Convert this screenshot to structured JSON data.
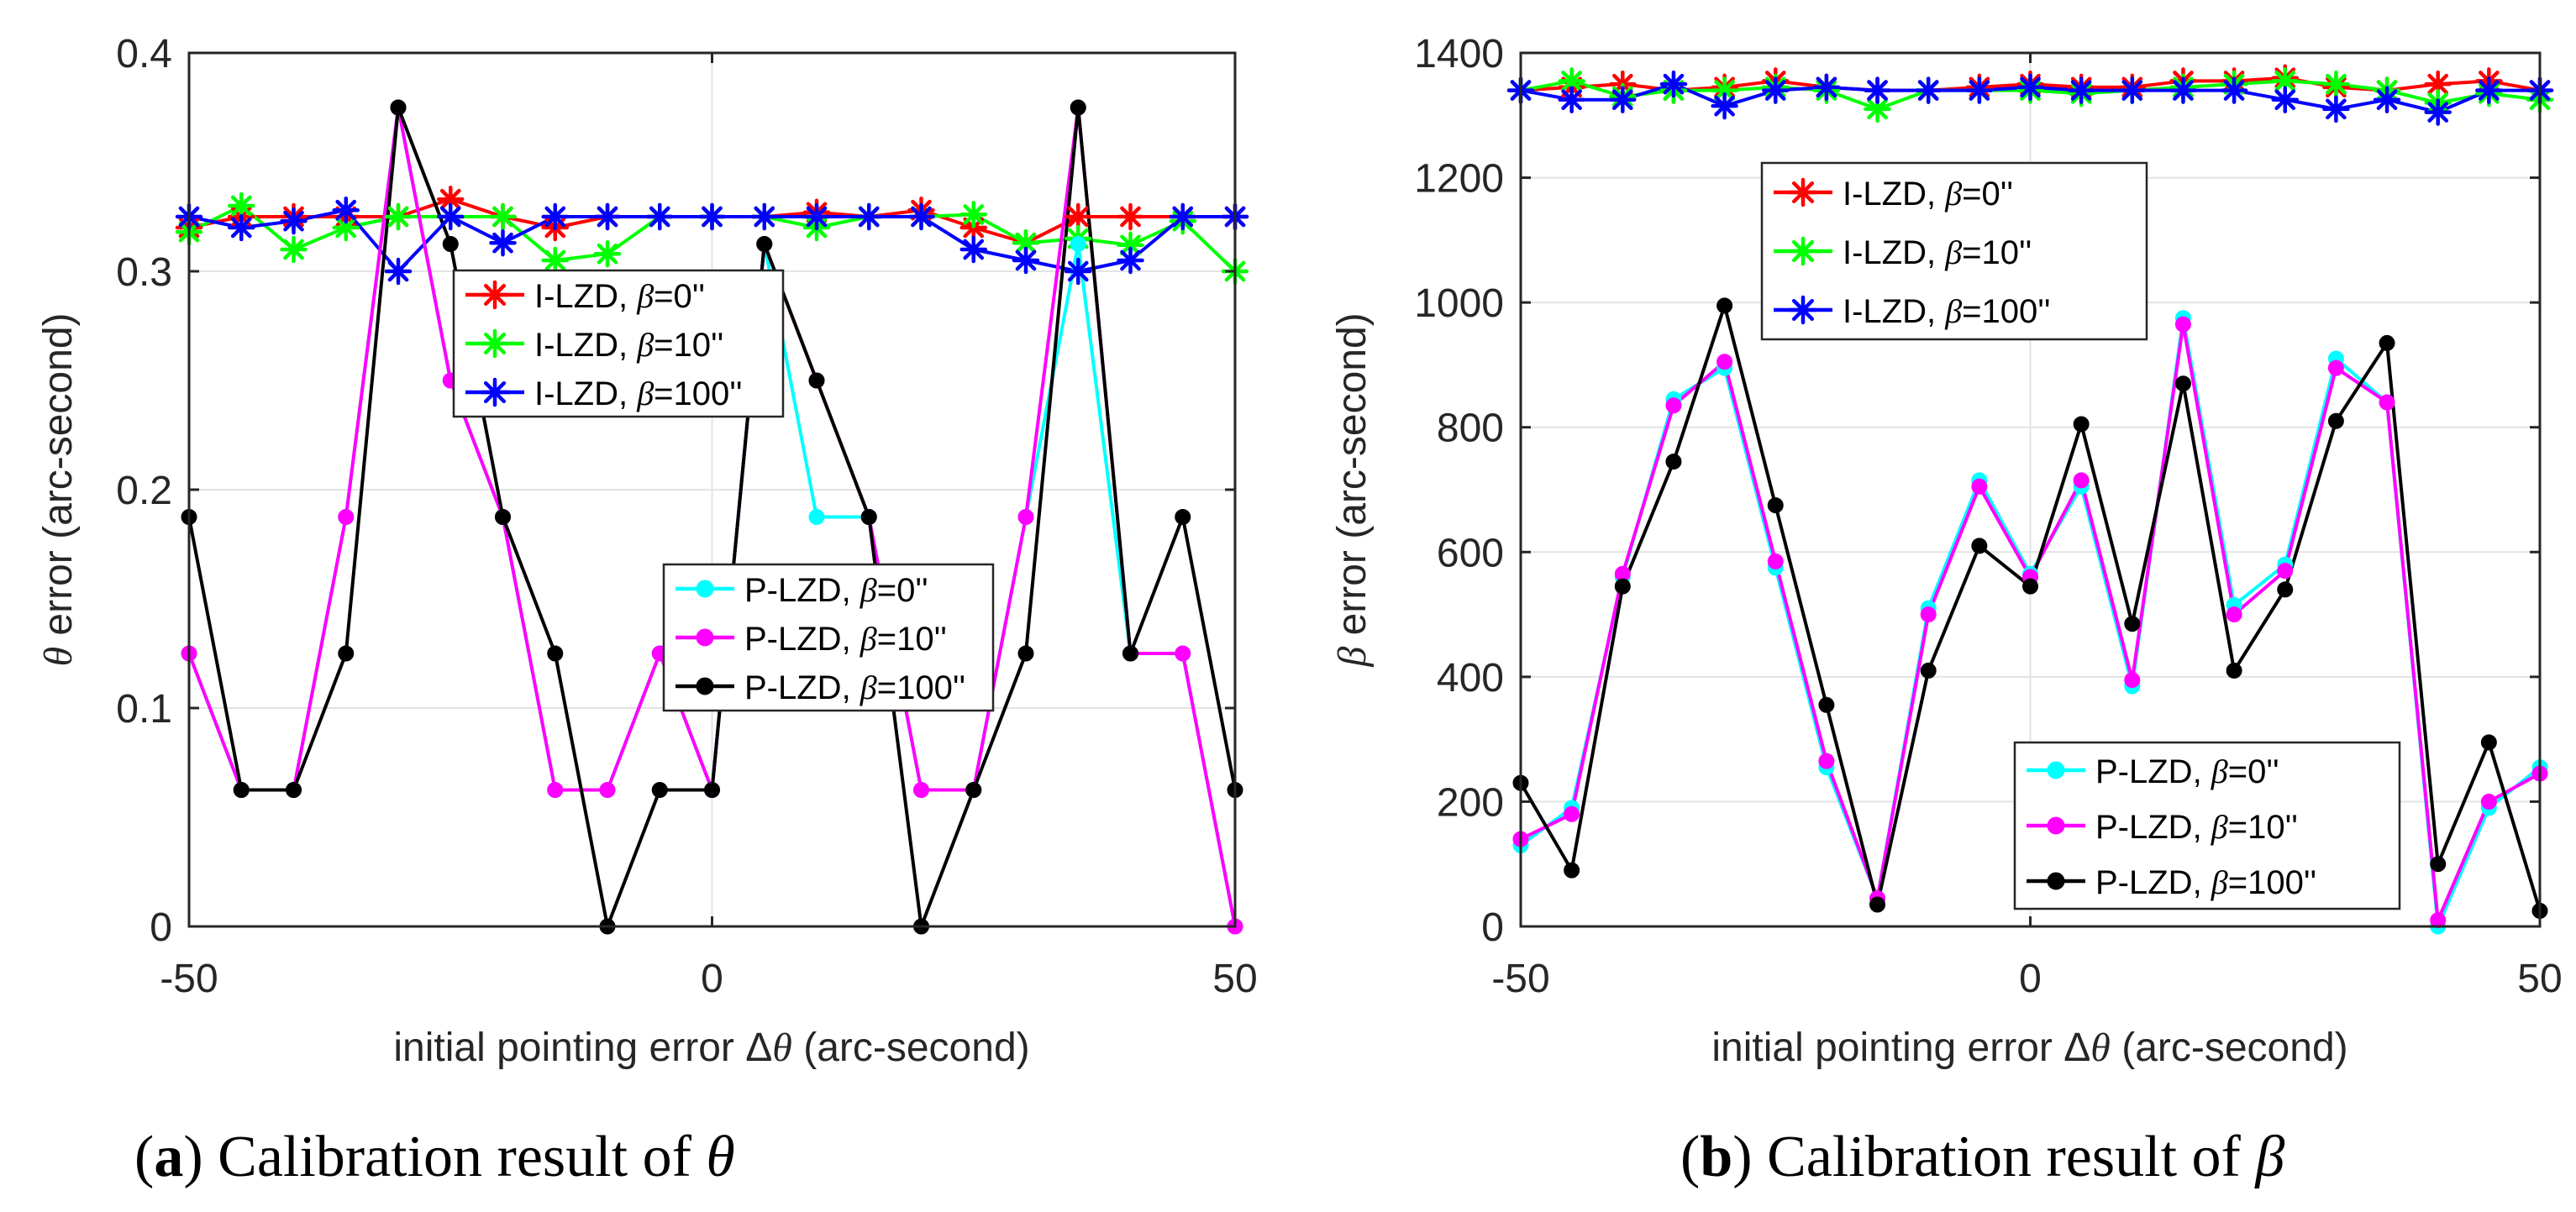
{
  "chart_data": [
    {
      "type": "line",
      "panel_label": "a",
      "caption": "Calibration result of θ",
      "title": "",
      "xlabel": "initial pointing error Δθ (arc-second)",
      "ylabel": "θ error (arc-second)",
      "xlim": [
        -50,
        50
      ],
      "ylim": [
        0,
        0.4
      ],
      "xticks": [
        -50,
        0,
        50
      ],
      "yticks": [
        0,
        0.1,
        0.2,
        0.3,
        0.4
      ],
      "xtick_labels": [
        "-50",
        "0",
        "50"
      ],
      "ytick_labels": [
        "0",
        "0.1",
        "0.2",
        "0.3",
        "0.4"
      ],
      "grid": true,
      "x": [
        -50,
        -45,
        -40,
        -35,
        -30,
        -25,
        -20,
        -15,
        -10,
        -5,
        0,
        5,
        10,
        15,
        20,
        25,
        30,
        35,
        40,
        45,
        50
      ],
      "legends": [
        {
          "placement": "upper-center",
          "entries": [
            {
              "method": "I-LZD",
              "beta": "β=0''",
              "color": "#ff0000",
              "marker": "star"
            },
            {
              "method": "I-LZD",
              "beta": "β=10''",
              "color": "#00ff00",
              "marker": "star"
            },
            {
              "method": "I-LZD",
              "beta": "β=100''",
              "color": "#0000ff",
              "marker": "star"
            }
          ]
        },
        {
          "placement": "center-right",
          "entries": [
            {
              "method": "P-LZD",
              "beta": "β=0''",
              "color": "#00ffff",
              "marker": "dot"
            },
            {
              "method": "P-LZD",
              "beta": "β=10''",
              "color": "#ff00ff",
              "marker": "dot"
            },
            {
              "method": "P-LZD",
              "beta": "β=100''",
              "color": "#000000",
              "marker": "dot"
            }
          ]
        }
      ],
      "series": [
        {
          "name": "I-LZD, β=0''",
          "color": "#ff0000",
          "marker": "star",
          "values": [
            0.32,
            0.325,
            0.325,
            0.325,
            0.325,
            0.333,
            0.325,
            0.32,
            0.325,
            0.325,
            0.325,
            0.325,
            0.327,
            0.325,
            0.328,
            0.32,
            0.313,
            0.325,
            0.325,
            0.325,
            0.325
          ]
        },
        {
          "name": "I-LZD, β=10''",
          "color": "#00ff00",
          "marker": "star",
          "values": [
            0.318,
            0.33,
            0.31,
            0.32,
            0.325,
            0.325,
            0.325,
            0.305,
            0.308,
            0.325,
            0.325,
            0.325,
            0.32,
            0.325,
            0.325,
            0.326,
            0.313,
            0.315,
            0.312,
            0.323,
            0.3
          ]
        },
        {
          "name": "I-LZD, β=100''",
          "color": "#0000ff",
          "marker": "star",
          "values": [
            0.325,
            0.32,
            0.323,
            0.328,
            0.3,
            0.325,
            0.313,
            0.325,
            0.325,
            0.325,
            0.325,
            0.325,
            0.325,
            0.325,
            0.325,
            0.31,
            0.305,
            0.3,
            0.305,
            0.325,
            0.325
          ]
        },
        {
          "name": "P-LZD, β=0''",
          "color": "#00ffff",
          "marker": "dot",
          "values": [
            0.125,
            0.0625,
            0.0625,
            0.1875,
            0.375,
            0.25,
            0.1875,
            0.0625,
            0.0625,
            0.125,
            0.0625,
            0.3125,
            0.1875,
            0.1875,
            0.0625,
            0.0625,
            0.1875,
            0.3125,
            0.125,
            0.125,
            0.0
          ]
        },
        {
          "name": "P-LZD, β=10''",
          "color": "#ff00ff",
          "marker": "dot",
          "values": [
            0.125,
            0.0625,
            0.0625,
            0.1875,
            0.375,
            0.25,
            0.1875,
            0.0625,
            0.0625,
            0.125,
            0.0625,
            0.3125,
            0.25,
            0.1875,
            0.0625,
            0.0625,
            0.1875,
            0.375,
            0.125,
            0.125,
            0.0
          ]
        },
        {
          "name": "P-LZD, β=100''",
          "color": "#000000",
          "marker": "dot",
          "values": [
            0.1875,
            0.0625,
            0.0625,
            0.125,
            0.375,
            0.3125,
            0.1875,
            0.125,
            0.0,
            0.0625,
            0.0625,
            0.3125,
            0.25,
            0.1875,
            0.0,
            0.0625,
            0.125,
            0.375,
            0.125,
            0.1875,
            0.0625
          ]
        }
      ]
    },
    {
      "type": "line",
      "panel_label": "b",
      "caption": "Calibration result of β",
      "title": "",
      "xlabel": "initial pointing error Δθ (arc-second)",
      "ylabel": "β error (arc-second)",
      "xlim": [
        -50,
        50
      ],
      "ylim": [
        0,
        1400
      ],
      "xticks": [
        -50,
        0,
        50
      ],
      "yticks": [
        0,
        200,
        400,
        600,
        800,
        1000,
        1200,
        1400
      ],
      "xtick_labels": [
        "-50",
        "0",
        "50"
      ],
      "ytick_labels": [
        "0",
        "200",
        "400",
        "600",
        "800",
        "1000",
        "1200",
        "1400"
      ],
      "grid": true,
      "x": [
        -50,
        -45,
        -40,
        -35,
        -30,
        -25,
        -20,
        -15,
        -10,
        -5,
        0,
        5,
        10,
        15,
        20,
        25,
        30,
        35,
        40,
        45,
        50
      ],
      "legends": [
        {
          "placement": "upper-center",
          "entries": [
            {
              "method": "I-LZD",
              "beta": "β=0''",
              "color": "#ff0000",
              "marker": "star"
            },
            {
              "method": "I-LZD",
              "beta": "β=10''",
              "color": "#00ff00",
              "marker": "star"
            },
            {
              "method": "I-LZD",
              "beta": "β=100''",
              "color": "#0000ff",
              "marker": "star"
            }
          ]
        },
        {
          "placement": "lower-right",
          "entries": [
            {
              "method": "P-LZD",
              "beta": "β=0''",
              "color": "#00ffff",
              "marker": "dot"
            },
            {
              "method": "P-LZD",
              "beta": "β=10''",
              "color": "#ff00ff",
              "marker": "dot"
            },
            {
              "method": "P-LZD",
              "beta": "β=100''",
              "color": "#000000",
              "marker": "dot"
            }
          ]
        }
      ],
      "series": [
        {
          "name": "I-LZD, β=0''",
          "color": "#ff0000",
          "marker": "star",
          "values": [
            1340,
            1345,
            1350,
            1340,
            1345,
            1355,
            1345,
            1340,
            1340,
            1345,
            1350,
            1345,
            1345,
            1355,
            1355,
            1360,
            1345,
            1340,
            1350,
            1355,
            1340
          ]
        },
        {
          "name": "I-LZD, β=10''",
          "color": "#00ff00",
          "marker": "star",
          "values": [
            1340,
            1355,
            1330,
            1340,
            1340,
            1345,
            1340,
            1310,
            1340,
            1340,
            1340,
            1335,
            1340,
            1345,
            1350,
            1355,
            1350,
            1340,
            1320,
            1335,
            1325
          ]
        },
        {
          "name": "I-LZD, β=100''",
          "color": "#0000ff",
          "marker": "star",
          "values": [
            1340,
            1325,
            1325,
            1350,
            1315,
            1340,
            1345,
            1340,
            1340,
            1340,
            1345,
            1340,
            1340,
            1340,
            1340,
            1325,
            1310,
            1325,
            1305,
            1340,
            1340
          ]
        },
        {
          "name": "P-LZD, β=0''",
          "color": "#00ffff",
          "marker": "dot",
          "values": [
            130,
            190,
            560,
            845,
            895,
            575,
            255,
            45,
            510,
            715,
            565,
            705,
            385,
            975,
            515,
            580,
            910,
            840,
            0,
            190,
            255
          ]
        },
        {
          "name": "P-LZD, β=10''",
          "color": "#ff00ff",
          "marker": "dot",
          "values": [
            140,
            180,
            565,
            835,
            905,
            585,
            265,
            45,
            500,
            705,
            560,
            715,
            395,
            965,
            500,
            570,
            895,
            840,
            10,
            200,
            245
          ]
        },
        {
          "name": "P-LZD, β=100''",
          "color": "#000000",
          "marker": "dot",
          "values": [
            230,
            90,
            545,
            745,
            995,
            675,
            355,
            35,
            410,
            610,
            545,
            805,
            485,
            870,
            410,
            540,
            810,
            935,
            100,
            295,
            25
          ]
        }
      ]
    }
  ]
}
